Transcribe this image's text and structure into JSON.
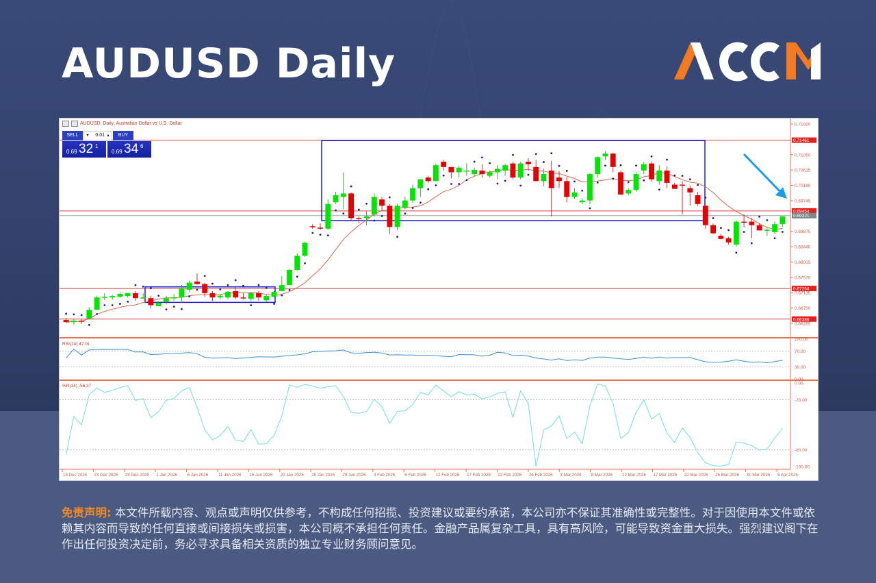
{
  "page": {
    "title": "AUDUSD Daily",
    "logo_text": "ACCM",
    "colors": {
      "brand_orange": "#f47a20",
      "background": "#33426c",
      "bull": "#00e600",
      "bear": "#e60000",
      "sar": "#1a1aa0",
      "ma": "#d2694b",
      "box": "#1c1cc8",
      "level": "#d94040"
    }
  },
  "terminal": {
    "header": "AUDUSD, Daily:  Australian Dollar vs U.S. Dollar",
    "sell_label": "SELL",
    "buy_label": "BUY",
    "lot_value": "0.01",
    "bid": {
      "small": "0.69",
      "big": "32",
      "pip": "1"
    },
    "ask": {
      "small": "0.69",
      "big": "34",
      "pip": "6"
    }
  },
  "disclaimer": {
    "label": "免责声明:",
    "text": " 本文件所载内容、观点或声明仅供参考，不构成任何招揽、投资建议或要约承诺，本公司亦不保证其准确性或完整性。对于因使用本文件或依赖其内容而导致的任何直接或间接损失或损害，本公司概不承担任何责任。金融产品属复杂工具，具有高风险，可能导致资金重大损失。强烈建议阁下在作出任何投资决定前，务必寻求具备相关资质的独立专业财务顾问意见。"
  },
  "chart_data": {
    "type": "candlestick",
    "title": "AUDUSD, Daily: Australian Dollar vs U.S. Dollar",
    "price_axis": {
      "ticks": [
        "0.71920",
        "0.71050",
        "0.70615",
        "0.70180",
        "0.69745",
        "0.68875",
        "0.68440",
        "0.68005",
        "0.67570",
        "0.67135",
        "0.66700",
        "0.66265"
      ],
      "range": [
        0.661,
        0.72
      ]
    },
    "highlighted_levels": [
      {
        "label": "0.71461",
        "value": 0.71461
      },
      {
        "label": "0.69454",
        "value": 0.69454
      },
      {
        "label": "0.69321",
        "value": 0.69321,
        "kind": "current_bid"
      },
      {
        "label": "0.67254",
        "value": 0.67254
      },
      {
        "label": "0.66386",
        "value": 0.66386
      }
    ],
    "x_ticks": [
      "18 Dec 2025",
      "23 Dec 2025",
      "28 Dec 2025",
      "1 Jan 2026",
      "6 Jan 2026",
      "11 Jan 2026",
      "15 Jan 2026",
      "20 Jan 2026",
      "25 Jan 2026",
      "29 Jan 2026",
      "3 Feb 2026",
      "8 Feb 2026",
      "12 Feb 2026",
      "17 Feb 2026",
      "22 Feb 2026",
      "26 Feb 2026",
      "3 Mar 2026",
      "8 Mar 2026",
      "12 Mar 2026",
      "17 Mar 2026",
      "22 Mar 2026",
      "26 Mar 2026",
      "31 Mar 2026",
      "5 Apr 2026"
    ],
    "ohlc": [
      [
        0.6636,
        0.6642,
        0.6628,
        0.663
      ],
      [
        0.663,
        0.664,
        0.6622,
        0.6634
      ],
      [
        0.6634,
        0.6638,
        0.6625,
        0.6632
      ],
      [
        0.664,
        0.6672,
        0.664,
        0.6665
      ],
      [
        0.6665,
        0.6705,
        0.6665,
        0.67
      ],
      [
        0.67,
        0.6712,
        0.6692,
        0.6702
      ],
      [
        0.67,
        0.6708,
        0.6694,
        0.6704
      ],
      [
        0.6702,
        0.6715,
        0.67,
        0.671
      ],
      [
        0.6704,
        0.6712,
        0.67,
        0.6712
      ],
      [
        0.6712,
        0.6718,
        0.669,
        0.6698
      ],
      [
        0.67,
        0.6712,
        0.6695,
        0.67
      ],
      [
        0.6698,
        0.6705,
        0.6668,
        0.6678
      ],
      [
        0.6675,
        0.669,
        0.6675,
        0.6685
      ],
      [
        0.6688,
        0.6705,
        0.668,
        0.6698
      ],
      [
        0.6698,
        0.671,
        0.669,
        0.67
      ],
      [
        0.67,
        0.6735,
        0.6685,
        0.6725
      ],
      [
        0.6722,
        0.6748,
        0.6715,
        0.6742
      ],
      [
        0.6745,
        0.6768,
        0.6736,
        0.6738
      ],
      [
        0.6738,
        0.6742,
        0.6702,
        0.6712
      ],
      [
        0.6712,
        0.6718,
        0.669,
        0.67
      ],
      [
        0.67,
        0.6708,
        0.6695,
        0.6705
      ],
      [
        0.67,
        0.6718,
        0.6695,
        0.6716
      ],
      [
        0.6718,
        0.673,
        0.6695,
        0.67
      ],
      [
        0.67,
        0.6712,
        0.6695,
        0.6698
      ],
      [
        0.6696,
        0.6715,
        0.669,
        0.6712
      ],
      [
        0.6712,
        0.6718,
        0.669,
        0.67
      ],
      [
        0.6692,
        0.6708,
        0.6688,
        0.6704
      ],
      [
        0.6702,
        0.6718,
        0.67,
        0.6716
      ],
      [
        0.6718,
        0.676,
        0.6718,
        0.6735
      ],
      [
        0.6735,
        0.678,
        0.6735,
        0.6778
      ],
      [
        0.6778,
        0.6825,
        0.6775,
        0.6818
      ],
      [
        0.6818,
        0.6858,
        0.6815,
        0.6855
      ],
      [
        0.6902,
        0.6908,
        0.6895,
        0.69
      ],
      [
        0.6898,
        0.691,
        0.6892,
        0.6896
      ],
      [
        0.6895,
        0.6978,
        0.6892,
        0.6965
      ],
      [
        0.697,
        0.7,
        0.6965,
        0.699
      ],
      [
        0.6985,
        0.7055,
        0.695,
        0.6995
      ],
      [
        0.6995,
        0.6998,
        0.692,
        0.6925
      ],
      [
        0.6925,
        0.693,
        0.691,
        0.6922
      ],
      [
        0.6925,
        0.6945,
        0.6905,
        0.693
      ],
      [
        0.6935,
        0.6995,
        0.693,
        0.6985
      ],
      [
        0.6978,
        0.6985,
        0.6945,
        0.696
      ],
      [
        0.696,
        0.6965,
        0.688,
        0.69
      ],
      [
        0.69,
        0.6965,
        0.689,
        0.696
      ],
      [
        0.6955,
        0.6985,
        0.695,
        0.6975
      ],
      [
        0.6975,
        0.702,
        0.6968,
        0.701
      ],
      [
        0.701,
        0.7035,
        0.6985,
        0.7035
      ],
      [
        0.704,
        0.7045,
        0.7025,
        0.703
      ],
      [
        0.703,
        0.708,
        0.703,
        0.7075
      ],
      [
        0.7085,
        0.709,
        0.706,
        0.707
      ],
      [
        0.707,
        0.706,
        0.7038,
        0.7055
      ],
      [
        0.7055,
        0.7073,
        0.704,
        0.7068
      ],
      [
        0.706,
        0.708,
        0.7045,
        0.706
      ],
      [
        0.705,
        0.7068,
        0.7042,
        0.7062
      ],
      [
        0.706,
        0.7078,
        0.704,
        0.705
      ],
      [
        0.7045,
        0.706,
        0.704,
        0.7055
      ],
      [
        0.7055,
        0.7075,
        0.7035,
        0.7065
      ],
      [
        0.706,
        0.708,
        0.7045,
        0.7075
      ],
      [
        0.708,
        0.7085,
        0.7035,
        0.704
      ],
      [
        0.704,
        0.7085,
        0.7035,
        0.708
      ],
      [
        0.7085,
        0.7095,
        0.706,
        0.7078
      ],
      [
        0.707,
        0.709,
        0.703,
        0.703
      ],
      [
        0.703,
        0.7065,
        0.7015,
        0.705
      ],
      [
        0.706,
        0.7088,
        0.693,
        0.701
      ],
      [
        0.704,
        0.7058,
        0.701,
        0.703
      ],
      [
        0.703,
        0.7042,
        0.697,
        0.6985
      ],
      [
        0.6985,
        0.701,
        0.698,
        0.6998
      ],
      [
        0.697,
        0.6982,
        0.6965,
        0.6975
      ],
      [
        0.6975,
        0.7052,
        0.6965,
        0.705
      ],
      [
        0.705,
        0.71,
        0.704,
        0.7098
      ],
      [
        0.71,
        0.7115,
        0.709,
        0.7108
      ],
      [
        0.7108,
        0.711,
        0.7055,
        0.707
      ],
      [
        0.7055,
        0.706,
        0.699,
        0.6992
      ],
      [
        0.6995,
        0.701,
        0.699,
        0.7005
      ],
      [
        0.7005,
        0.7055,
        0.7,
        0.705
      ],
      [
        0.706,
        0.7085,
        0.705,
        0.7078
      ],
      [
        0.708,
        0.7085,
        0.7028,
        0.7035
      ],
      [
        0.703,
        0.7075,
        0.702,
        0.706
      ],
      [
        0.706,
        0.7072,
        0.701,
        0.7025
      ],
      [
        0.702,
        0.7025,
        0.7012,
        0.7008
      ],
      [
        0.702,
        0.703,
        0.6935,
        0.7018
      ],
      [
        0.701,
        0.7018,
        0.696,
        0.6998
      ],
      [
        0.699,
        0.7,
        0.696,
        0.6965
      ],
      [
        0.696,
        0.6962,
        0.6895,
        0.6905
      ],
      [
        0.6905,
        0.691,
        0.688,
        0.6882
      ],
      [
        0.6875,
        0.688,
        0.6865,
        0.6866
      ],
      [
        0.6868,
        0.6872,
        0.685,
        0.6856
      ],
      [
        0.685,
        0.6918,
        0.6845,
        0.6915
      ],
      [
        0.6915,
        0.6935,
        0.6898,
        0.6912
      ],
      [
        0.6915,
        0.6925,
        0.6868,
        0.6905
      ],
      [
        0.6905,
        0.691,
        0.6895,
        0.689
      ],
      [
        0.689,
        0.6898,
        0.6875,
        0.6892
      ],
      [
        0.6885,
        0.6915,
        0.688,
        0.6908
      ],
      [
        0.6908,
        0.693,
        0.69,
        0.693
      ]
    ],
    "ma_label": "Moving Average",
    "parabolic_sar": true,
    "annotations": [
      "range box Jan 2026 (~0.6686–0.6730)",
      "range box Jan–Mar 2026 (~0.6918–0.7145)",
      "blue down arrow near 0.6950"
    ],
    "indicators": [
      {
        "name": "RSI(14)",
        "label": "RSI(14) 47.01",
        "value": 47.01,
        "levels": [
          70,
          30
        ],
        "ticks": [
          "100.00",
          "70.00",
          "30.00",
          "0.00"
        ]
      },
      {
        "name": "%R(14)",
        "label": "%R(14) -56.37",
        "value": -56.37,
        "levels": [
          -20,
          -80
        ],
        "ticks": [
          "0.00",
          "-20.00",
          "-80.00",
          "-100.00"
        ]
      }
    ]
  }
}
